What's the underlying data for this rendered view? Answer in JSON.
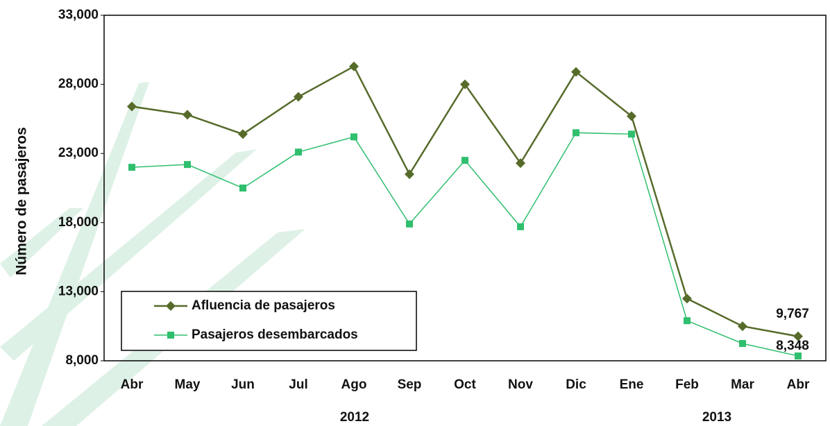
{
  "chart_data": {
    "type": "line",
    "y_label": "Número de pasajeros",
    "categories": [
      "Abr",
      "May",
      "Jun",
      "Jul",
      "Ago",
      "Sep",
      "Oct",
      "Nov",
      "Dic",
      "Ene",
      "Feb",
      "Mar",
      "Abr"
    ],
    "year_labels": [
      "2012",
      "2013"
    ],
    "series": [
      {
        "name": "Afluencia de pasajeros",
        "color": "#566b2a",
        "marker": "diamond",
        "values": [
          26400,
          25800,
          24400,
          27100,
          29300,
          21500,
          28000,
          22300,
          28900,
          25700,
          12500,
          10500,
          9767
        ],
        "value_labels": [
          null,
          null,
          null,
          null,
          null,
          null,
          null,
          null,
          null,
          null,
          null,
          null,
          "9,767"
        ]
      },
      {
        "name": "Pasajeros desembarcados",
        "color": "#2fbf6e",
        "marker": "square",
        "values": [
          22000,
          22200,
          20500,
          23100,
          24200,
          17900,
          22500,
          17700,
          24500,
          24400,
          10900,
          9250,
          8348
        ],
        "value_labels": [
          null,
          null,
          null,
          null,
          null,
          null,
          null,
          null,
          null,
          null,
          null,
          null,
          "8,348"
        ]
      }
    ],
    "ylim": [
      8000,
      33000
    ],
    "yticks": [
      {
        "value": 8000,
        "label": "8,000"
      },
      {
        "value": 13000,
        "label": "13,000"
      },
      {
        "value": 18000,
        "label": "18,000"
      },
      {
        "value": 23000,
        "label": "23,000"
      },
      {
        "value": 28000,
        "label": "28,000"
      },
      {
        "value": 33000,
        "label": "33,000"
      }
    ],
    "grid": false,
    "legend": "lower left"
  }
}
